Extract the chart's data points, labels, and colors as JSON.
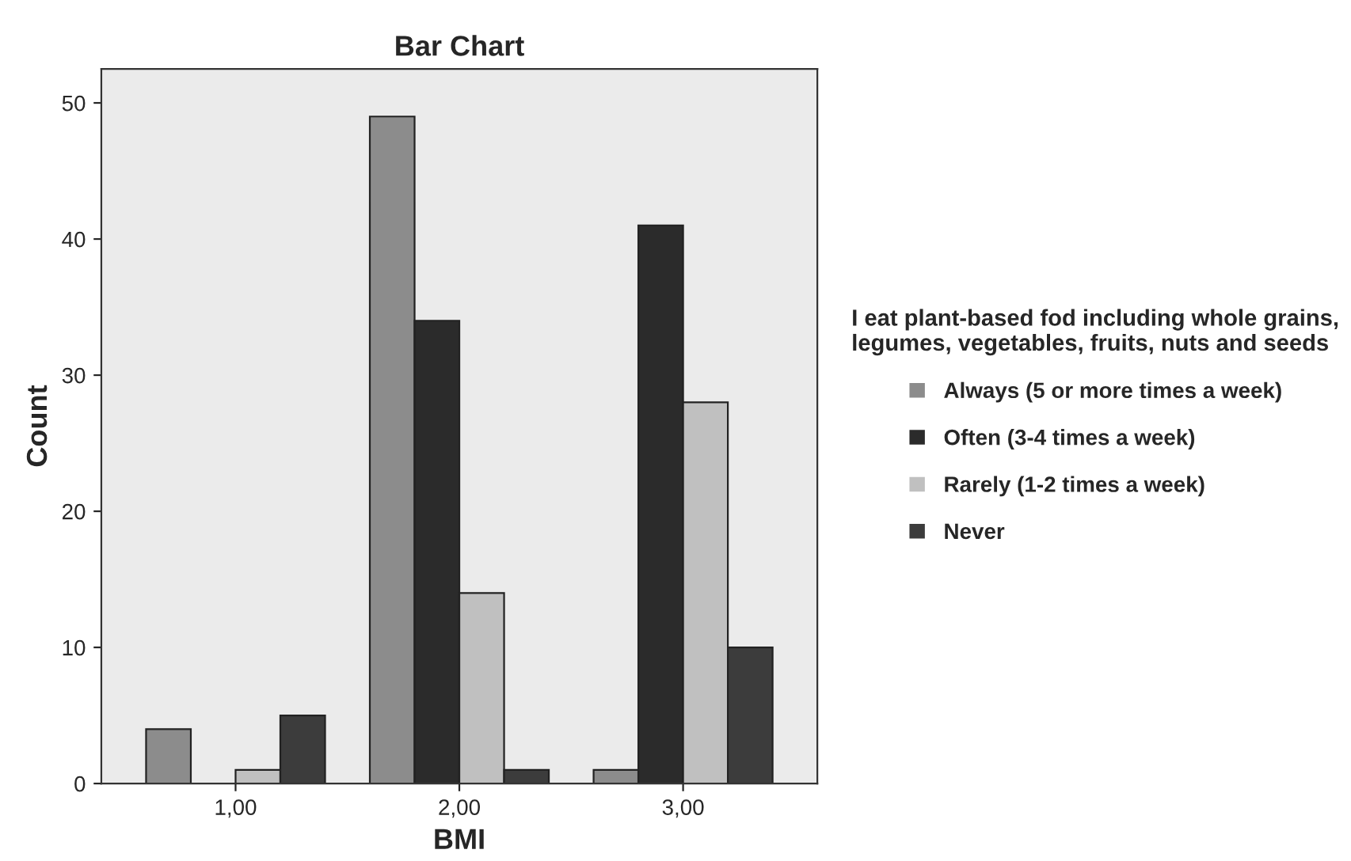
{
  "chart_data": {
    "type": "bar",
    "title": "Bar Chart",
    "xlabel": "BMI",
    "ylabel": "Count",
    "legend_title": "I eat plant-based fod including whole grains,\nlegumes, vegetables, fruits, nuts and seeds",
    "categories": [
      "1,00",
      "2,00",
      "3,00"
    ],
    "series": [
      {
        "name": "Always (5 or more times a week)",
        "color": "#8c8c8c",
        "values": [
          4,
          49,
          1
        ]
      },
      {
        "name": "Often (3-4 times a week)",
        "color": "#2b2b2b",
        "values": [
          null,
          34,
          41
        ]
      },
      {
        "name": "Rarely (1-2 times a week)",
        "color": "#c0c0c0",
        "values": [
          1,
          14,
          28
        ]
      },
      {
        "name": "Never",
        "color": "#3c3c3c",
        "values": [
          5,
          1,
          10
        ]
      }
    ],
    "ylim": [
      0,
      52.5
    ],
    "yticks": [
      0,
      10,
      20,
      30,
      40,
      50
    ],
    "grid": false,
    "legend": "right"
  }
}
